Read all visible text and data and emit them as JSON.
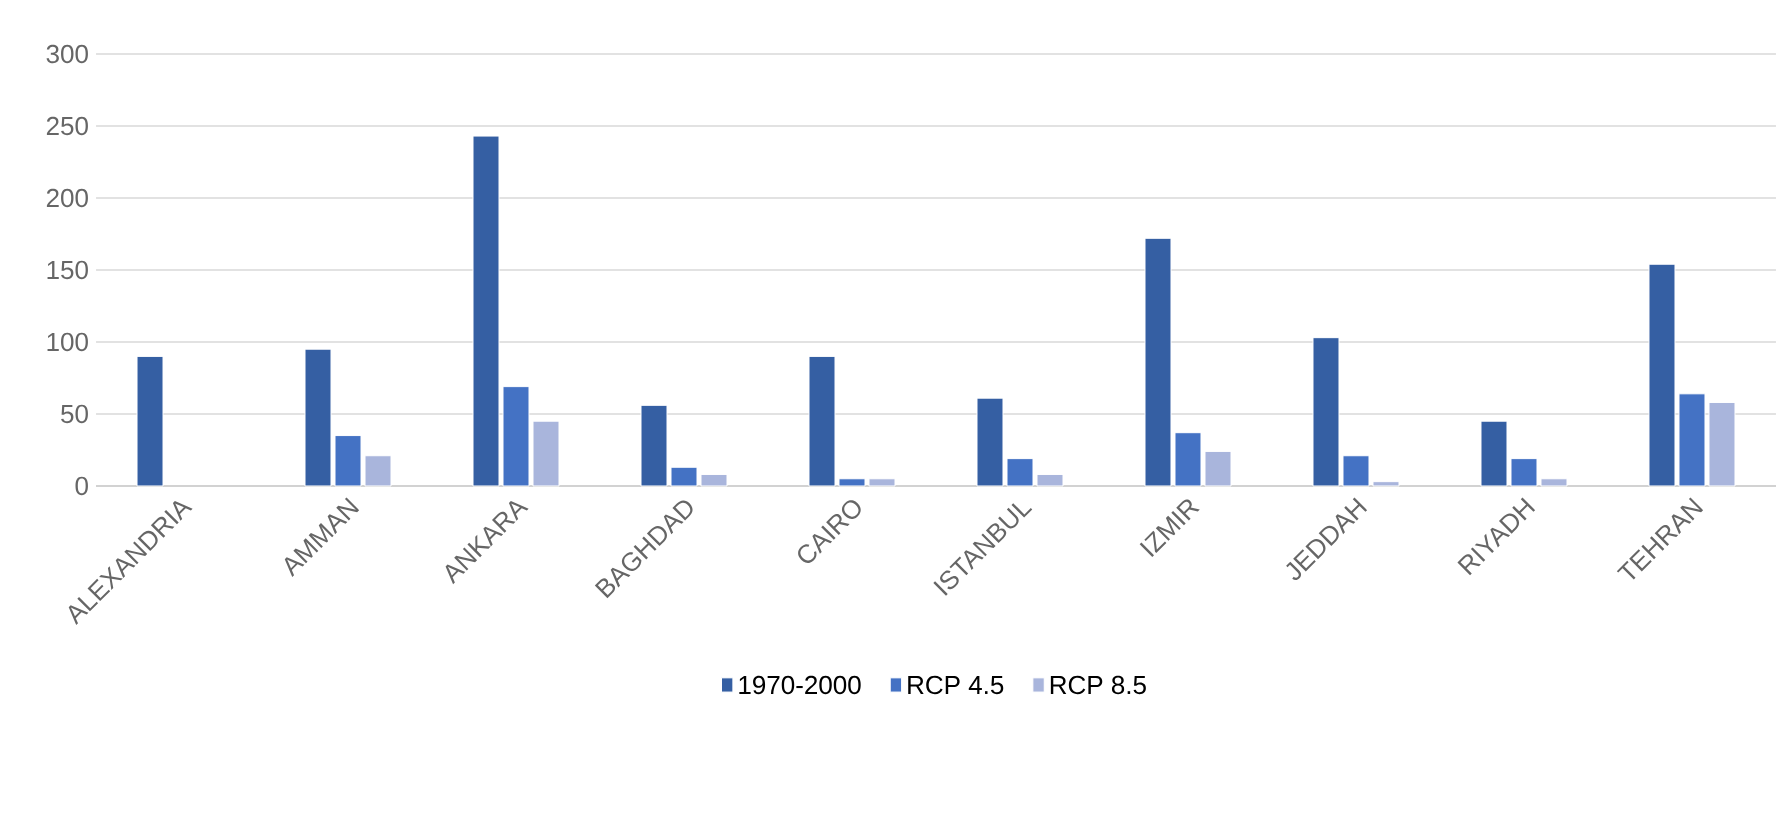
{
  "chart_data": {
    "type": "bar",
    "categories": [
      "ALEXANDRIA",
      "AMMAN",
      "ANKARA",
      "BAGHDAD",
      "CAIRO",
      "ISTANBUL",
      "IZMIR",
      "JEDDAH",
      "RIYADH",
      "TEHRAN"
    ],
    "series": [
      {
        "name": "1970-2000",
        "color": "#355fa3",
        "values": [
          90,
          95,
          243,
          56,
          90,
          61,
          172,
          103,
          45,
          154
        ]
      },
      {
        "name": "RCP 4.5",
        "color": "#4472c4",
        "values": [
          null,
          35,
          69,
          13,
          5,
          19,
          37,
          21,
          19,
          64
        ]
      },
      {
        "name": "RCP 8.5",
        "color": "#a9b5dc",
        "values": [
          null,
          21,
          45,
          8,
          5,
          8,
          24,
          3,
          5,
          58
        ]
      }
    ],
    "ylim": [
      0,
      300
    ],
    "yticks": [
      0,
      50,
      100,
      150,
      200,
      250,
      300
    ],
    "grid": "y",
    "legend": "bottom"
  }
}
